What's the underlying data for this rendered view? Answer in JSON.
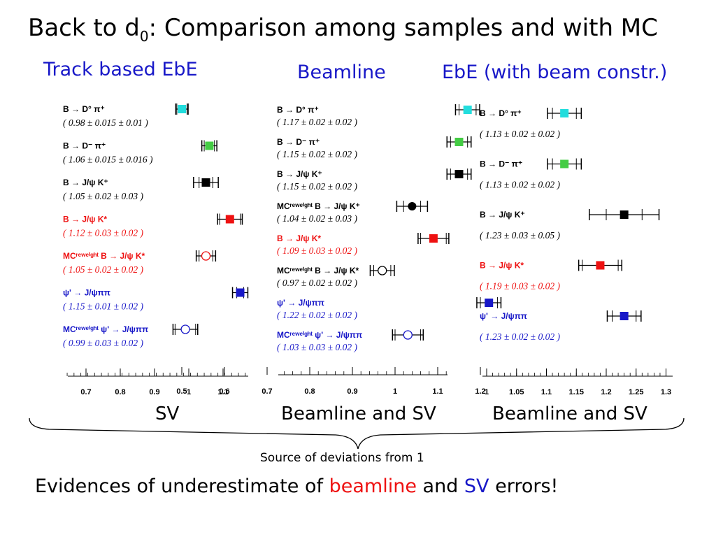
{
  "title": {
    "pre": "Back to d",
    "sub": "0",
    "post": ": Comparison among samples and with MC"
  },
  "headers": {
    "track": "Track based EbE",
    "beamline": "Beamline",
    "ebe": "EbE (with beam constr.)"
  },
  "bottom_labels": {
    "left": "SV",
    "middle": "Beamline and SV",
    "right": "Beamline and SV"
  },
  "source_text": "Source of deviations from 1",
  "evidence": {
    "pre": "Evidences of underestimate of ",
    "beamline": "beamline",
    "and": " and ",
    "sv": "SV",
    "post": " errors!"
  },
  "colors": {
    "black": "#000000",
    "red": "#ee1111",
    "blue": "#1818c8",
    "cyan": "#22dddd",
    "green": "#44cc44"
  },
  "chart_data": [
    {
      "type": "scatter",
      "title": "Track based EbE",
      "xlabel": "SV",
      "xlim": [
        0.625,
        1.2
      ],
      "ticks": [
        "0.7",
        "0.8",
        "0.9",
        "1",
        "1.1"
      ],
      "points": [
        {
          "label": "B → D° π⁺",
          "text": "( 0.98 ± 0.015 ± 0.01 )",
          "value": 0.98,
          "stat": 0.015,
          "syst": 0.01,
          "color": "cyan",
          "marker": "square"
        },
        {
          "label": "B → D⁻ π⁺",
          "text": "( 1.06 ± 0.015 ± 0.016 )",
          "value": 1.06,
          "stat": 0.015,
          "syst": 0.016,
          "color": "green",
          "marker": "square"
        },
        {
          "label": "B → J/ψ K⁺",
          "text": "( 1.05 ± 0.02 ± 0.03 )",
          "value": 1.05,
          "stat": 0.02,
          "syst": 0.03,
          "color": "black",
          "marker": "square"
        },
        {
          "label": "B → J/ψ K*",
          "text": "( 1.12 ± 0.03 ± 0.02 )",
          "value": 1.12,
          "stat": 0.03,
          "syst": 0.02,
          "color": "red",
          "marker": "square"
        },
        {
          "label": "MCʳᵉʷᵉⁱᵍʰᵗ B → J/ψ K*",
          "text": "( 1.05 ± 0.02 ± 0.02 )",
          "value": 1.05,
          "stat": 0.02,
          "syst": 0.02,
          "color": "red",
          "marker": "open-circle"
        },
        {
          "label": "ψ' → J/ψππ",
          "text": "( 1.15 ± 0.01 ± 0.02 )",
          "value": 1.15,
          "stat": 0.01,
          "syst": 0.02,
          "color": "blue",
          "marker": "square"
        },
        {
          "label": "MCʳᵉʷᵉⁱᵍʰᵗ ψ' → J/ψππ",
          "text": "( 0.99 ± 0.03 ± 0.02 )",
          "value": 0.99,
          "stat": 0.03,
          "syst": 0.02,
          "color": "blue",
          "marker": "open-circle"
        }
      ]
    },
    {
      "type": "scatter",
      "title": "Beamline",
      "xlabel": "Beamline and SV",
      "xlim": [
        0.5,
        1.25
      ],
      "ticks": [
        "0.5",
        "0.6",
        "0.7",
        "0.8",
        "0.9",
        "1",
        "1.1",
        "1.2"
      ],
      "points": [
        {
          "label": "B → D° π⁺",
          "text": "( 1.17 ± 0.02 ± 0.02 )",
          "value": 1.17,
          "stat": 0.02,
          "syst": 0.02,
          "color": "cyan",
          "marker": "square"
        },
        {
          "label": "B → D⁻ π⁺",
          "text": "( 1.15 ± 0.02 ± 0.02 )",
          "value": 1.15,
          "stat": 0.02,
          "syst": 0.02,
          "color": "green",
          "marker": "square"
        },
        {
          "label": "B → J/ψ K⁺",
          "text": "( 1.15 ± 0.02 ± 0.02 )",
          "value": 1.15,
          "stat": 0.02,
          "syst": 0.02,
          "color": "black",
          "marker": "square"
        },
        {
          "label": "MCʳᵉʷᵉⁱᵍʰᵗ B → J/ψ K⁺",
          "text": "( 1.04 ± 0.02 ± 0.03 )",
          "value": 1.04,
          "stat": 0.02,
          "syst": 0.03,
          "color": "black",
          "marker": "circle"
        },
        {
          "label": "B → J/ψ K*",
          "text": "( 1.09 ± 0.03 ± 0.02 )",
          "value": 1.09,
          "stat": 0.03,
          "syst": 0.02,
          "color": "red",
          "marker": "square"
        },
        {
          "label": "MCʳᵉʷᵉⁱᵍʰᵗ B → J/ψ K*",
          "text": "( 0.97 ± 0.02 ± 0.02 )",
          "value": 0.97,
          "stat": 0.02,
          "syst": 0.02,
          "color": "black",
          "marker": "open-circle"
        },
        {
          "label": "ψ' → J/ψππ",
          "text": "( 1.22 ± 0.02 ± 0.02 )",
          "value": 1.22,
          "stat": 0.02,
          "syst": 0.02,
          "color": "blue",
          "marker": "square"
        },
        {
          "label": "MCʳᵉʷᵉⁱᵍʰᵗ ψ' → J/ψππ",
          "text": "( 1.03 ± 0.03 ± 0.02 )",
          "value": 1.03,
          "stat": 0.03,
          "syst": 0.02,
          "color": "blue",
          "marker": "open-circle"
        }
      ]
    },
    {
      "type": "scatter",
      "title": "EbE (with beam constr.)",
      "xlabel": "Beamline and SV",
      "xlim": [
        1.0,
        1.3
      ],
      "ticks": [
        "1",
        "1.05",
        "1.1",
        "1.15",
        "1.2",
        "1.25",
        "1.3"
      ],
      "points": [
        {
          "label": "B → D° π⁺",
          "text": "( 1.13 ± 0.02 ± 0.02 )",
          "value": 1.13,
          "stat": 0.02,
          "syst": 0.02,
          "color": "cyan",
          "marker": "square"
        },
        {
          "label": "B → D⁻ π⁺",
          "text": "( 1.13 ± 0.02 ± 0.02 )",
          "value": 1.13,
          "stat": 0.02,
          "syst": 0.02,
          "color": "green",
          "marker": "square"
        },
        {
          "label": "B → J/ψ K⁺",
          "text": "( 1.23 ± 0.03 ± 0.05 )",
          "value": 1.23,
          "stat": 0.03,
          "syst": 0.05,
          "color": "black",
          "marker": "square"
        },
        {
          "label": "B → J/ψ K*",
          "text": "( 1.19 ± 0.03 ± 0.02 )",
          "value": 1.19,
          "stat": 0.03,
          "syst": 0.02,
          "color": "red",
          "marker": "square"
        },
        {
          "label": "ψ' → J/ψππ",
          "text": "( 1.23 ± 0.02 ± 0.02 )",
          "value": 1.23,
          "stat": 0.02,
          "syst": 0.02,
          "color": "blue",
          "marker": "square"
        }
      ]
    }
  ]
}
